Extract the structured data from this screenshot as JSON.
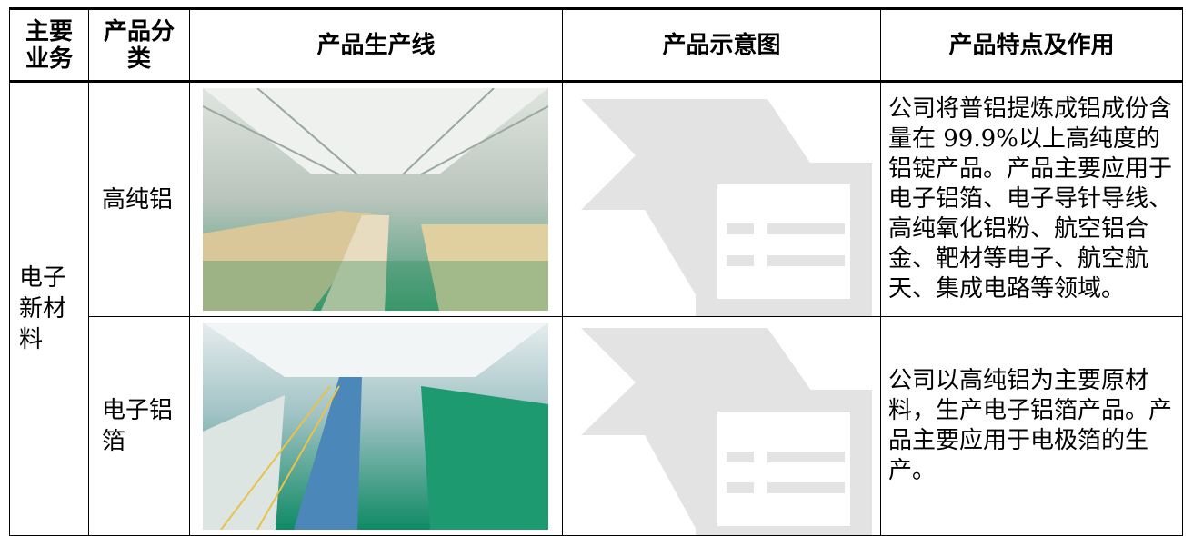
{
  "table": {
    "header": [
      "主要业务",
      "产品分类",
      "产品生产线",
      "产品示意图",
      "产品特点及作用"
    ],
    "group": "电子新材料",
    "rows": [
      {
        "category": "高纯铝",
        "description": "公司将普铝提炼成铝成份含量在 99.9%以上高纯度的铝锭产品。产品主要应用于电子铝箔、电子导针导线、高纯氧化铝粉、航空铝合金、靶材等电子、航空航天、集成电路等领域。"
      },
      {
        "category": "电子铝箔",
        "description": "公司以高纯铝为主要原材料，生产电子铝箔产品。产品主要应用于电极箔的生产。"
      }
    ]
  }
}
